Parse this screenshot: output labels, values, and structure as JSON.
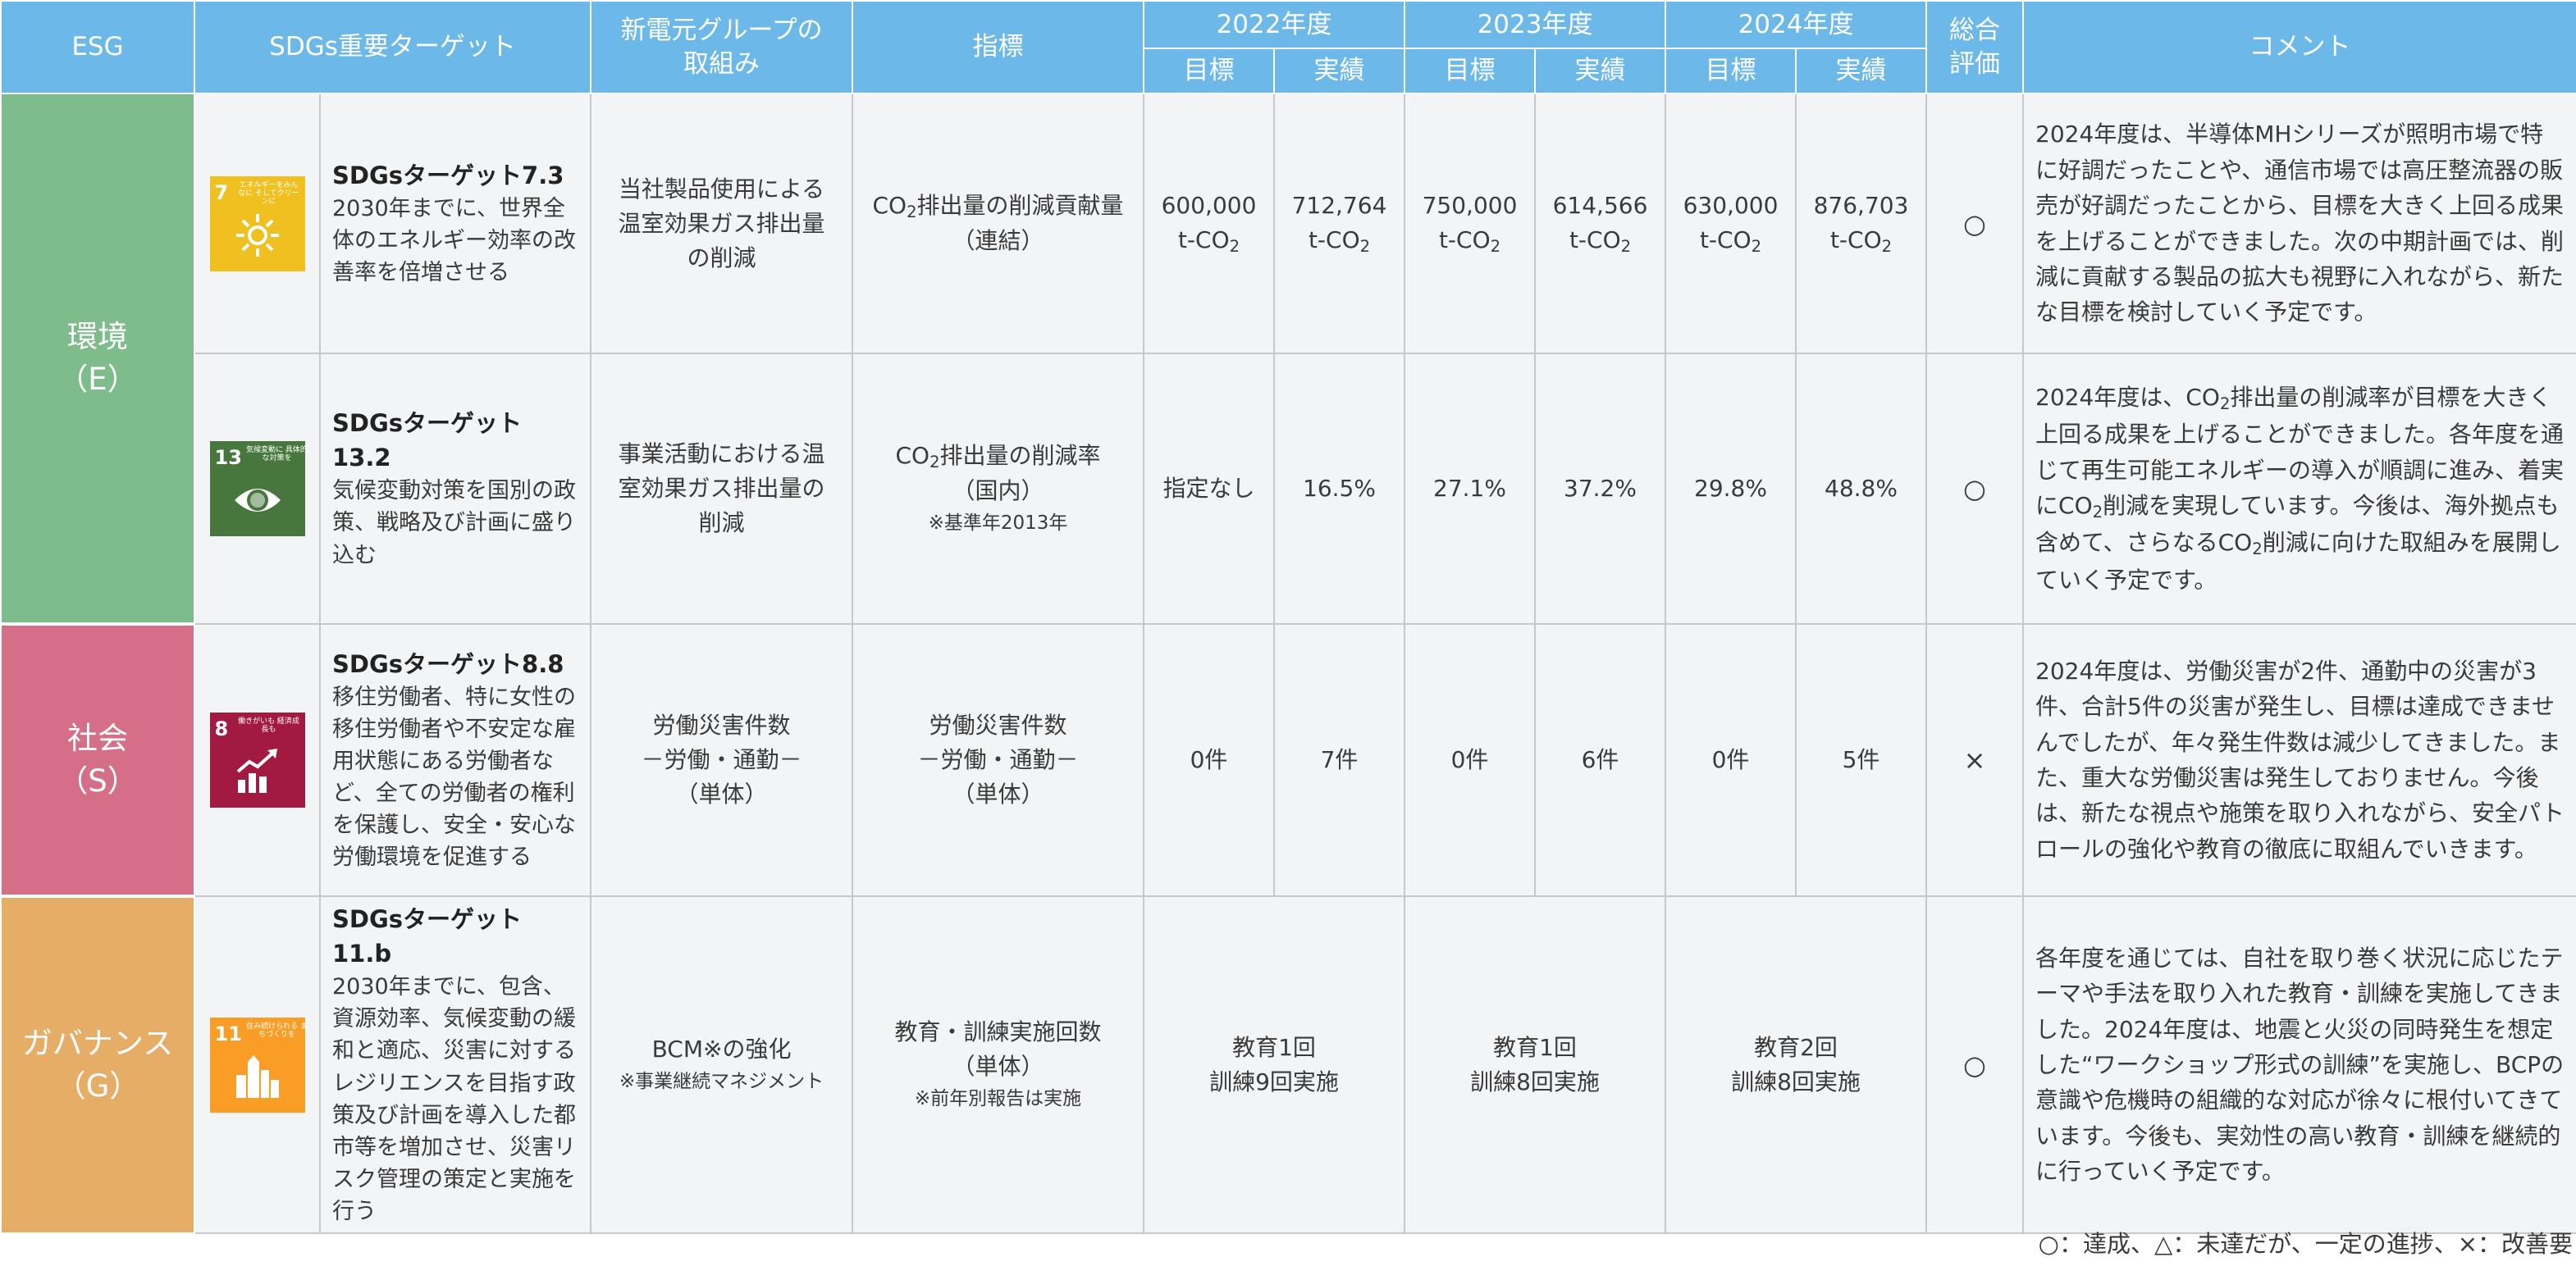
{
  "colors": {
    "header": "#6cb8e8",
    "environment": "#7fbc8c",
    "social": "#d46f87",
    "governance": "#e6ad67",
    "sdg7": "#f0c020",
    "sdg13": "#48773e",
    "sdg8": "#a21942",
    "sdg11": "#f99d26"
  },
  "header": {
    "esg": "ESG",
    "sdgs": "SDGs重要ターゲット",
    "efforts": "新電元グループの取組み",
    "indicator": "指標",
    "y2022": "2022年度",
    "y2023": "2023年度",
    "y2024": "2024年度",
    "target": "目標",
    "actual": "実績",
    "evaluation": "総合評価",
    "comment": "コメント"
  },
  "rows": [
    {
      "esg": "環境",
      "esg_sub": "（E）",
      "icon": {
        "num": "7",
        "text": "エネルギーをみんなに そしてクリーンに",
        "name": "sun-icon"
      },
      "target_title": "SDGsターゲット7.3",
      "target_desc": "2030年までに、世界全体のエネルギー効率の改善率を倍増させる",
      "effort": "当社製品使用による温室効果ガス排出量の削減",
      "indicator_a": "CO",
      "indicator_sub": "2",
      "indicator_b": "排出量の削減貢献量",
      "indicator_c": "（連結）",
      "v2022_target": "600,000",
      "v2022_actual": "712,764",
      "v2023_target": "750,000",
      "v2023_actual": "614,566",
      "v2024_target": "630,000",
      "v2024_actual": "876,703",
      "unit_a": "t-CO",
      "unit_sub": "2",
      "evaluation": "○",
      "comment": "2024年度は、半導体MHシリーズが照明市場で特に好調だったことや、通信市場では高圧整流器の販売が好調だったことから、目標を大きく上回る成果を上げることができました。次の中期計画では、削減に貢献する製品の拡大も視野に入れながら、新たな目標を検討していく予定です。"
    },
    {
      "icon": {
        "num": "13",
        "text": "気候変動に 具体的な対策を",
        "name": "eye-globe-icon"
      },
      "target_title": "SDGsターゲット13.2",
      "target_desc": "気候変動対策を国別の政策、戦略及び計画に盛り込む",
      "effort": "事業活動における温室効果ガス排出量の削減",
      "indicator_a": "CO",
      "indicator_sub": "2",
      "indicator_b": "排出量の削減率",
      "indicator_c": "（国内）",
      "indicator_note": "※基準年2013年",
      "v2022_target": "指定なし",
      "v2022_actual": "16.5%",
      "v2023_target": "27.1%",
      "v2023_actual": "37.2%",
      "v2024_target": "29.8%",
      "v2024_actual": "48.8%",
      "evaluation": "○",
      "comment_a": "2024年度は、CO",
      "comment_b": "排出量の削減率が目標を大きく上回る成果を上げることができました。各年度を通じて再生可能エネルギーの導入が順調に進み、着実にCO",
      "comment_c": "削減を実現しています。今後は、海外拠点も含めて、さらなるCO",
      "comment_d": "削減に向けた取組みを展開していく予定です。"
    },
    {
      "esg": "社会",
      "esg_sub": "（S）",
      "icon": {
        "num": "8",
        "text": "働きがいも 経済成長も",
        "name": "growth-chart-icon"
      },
      "target_title": "SDGsターゲット8.8",
      "target_desc": "移住労働者、特に女性の移住労働者や不安定な雇用状態にある労働者など、全ての労働者の権利を保護し、安全・安心な労働環境を促進する",
      "effort_a": "労働災害件数",
      "effort_b": "－労働・通勤－",
      "effort_c": "（単体）",
      "indicator_a": "労働災害件数",
      "indicator_b": "－労働・通勤－",
      "indicator_c": "（単体）",
      "v2022_target": "0件",
      "v2022_actual": "7件",
      "v2023_target": "0件",
      "v2023_actual": "6件",
      "v2024_target": "0件",
      "v2024_actual": "5件",
      "evaluation": "×",
      "comment": "2024年度は、労働災害が2件、通勤中の災害が3件、合計5件の災害が発生し、目標は達成できませんでしたが、年々発生件数は減少してきました。また、重大な労働災害は発生しておりません。今後は、新たな視点や施策を取り入れながら、安全パトロールの強化や教育の徹底に取組んでいきます。"
    },
    {
      "esg": "ガバナンス",
      "esg_sub": "（G）",
      "icon": {
        "num": "11",
        "text": "住み続けられる まちづくりを",
        "name": "city-buildings-icon"
      },
      "target_title": "SDGsターゲット11.b",
      "target_desc": "2030年までに、包含、資源効率、気候変動の緩和と適応、災害に対するレジリエンスを目指す政策及び計画を導入した都市等を増加させ、災害リスク管理の策定と実施を行う",
      "effort": "BCM※の強化",
      "effort_note": "※事業継続マネジメント",
      "indicator_a": "教育・訓練実施回数",
      "indicator_b": "（単体）",
      "indicator_note": "※前年別報告は実施",
      "y2022_a": "教育1回",
      "y2022_b": "訓練9回実施",
      "y2023_a": "教育1回",
      "y2023_b": "訓練8回実施",
      "y2024_a": "教育2回",
      "y2024_b": "訓練8回実施",
      "evaluation": "○",
      "comment": "各年度を通じては、自社を取り巻く状況に応じたテーマや手法を取り入れた教育・訓練を実施してきました。2024年度は、地震と火災の同時発生を想定した“ワークショップ形式の訓練”を実施し、BCPの意識や危機時の組織的な対応が徐々に根付いてきています。今後も、実効性の高い教育・訓練を継続的に行っていく予定です。"
    }
  ],
  "legend": "○：達成、△：未達だが、一定の進捗、×：改善要"
}
